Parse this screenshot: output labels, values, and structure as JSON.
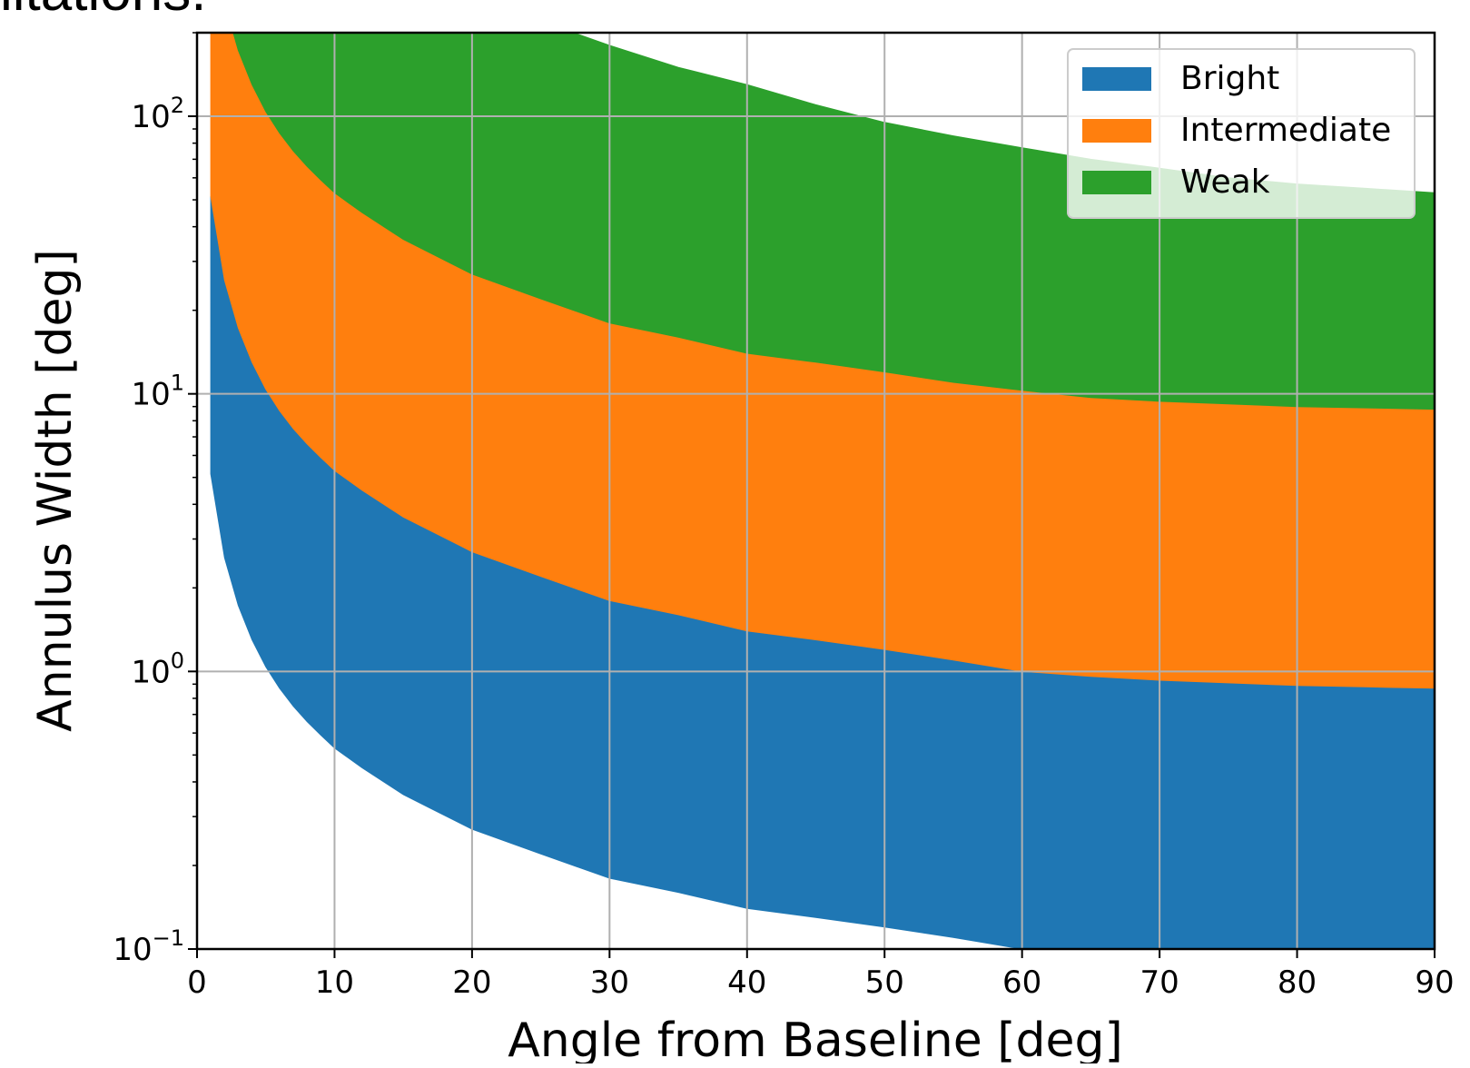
{
  "page": {
    "cropped_caption": "litations."
  },
  "chart_data": {
    "type": "area",
    "xlabel": "Angle from Baseline [deg]",
    "ylabel": "Annulus Width [deg]",
    "xlim": [
      0,
      90
    ],
    "ylim": [
      0.1,
      200
    ],
    "yscale": "log",
    "grid": true,
    "legend_position": "top-right",
    "x_ticks": [
      "0",
      "10",
      "20",
      "30",
      "40",
      "50",
      "60",
      "70",
      "80",
      "90"
    ],
    "y_ticks": [
      {
        "base": "10",
        "exp": "−1"
      },
      {
        "base": "10",
        "exp": "0"
      },
      {
        "base": "10",
        "exp": "1"
      },
      {
        "base": "10",
        "exp": "2"
      }
    ],
    "x": [
      1,
      2,
      3,
      4,
      5,
      6,
      7,
      8,
      9,
      10,
      12,
      15,
      20,
      25,
      30,
      35,
      40,
      45,
      50,
      55,
      60,
      65,
      70,
      75,
      80,
      85,
      90
    ],
    "series": [
      {
        "name": "Bright",
        "color": "#1f77b4",
        "lower": [
          5.15,
          2.57,
          1.73,
          1.3,
          1.04,
          0.87,
          0.75,
          0.66,
          0.59,
          0.53,
          0.45,
          0.36,
          0.27,
          0.22,
          0.18,
          0.16,
          0.14,
          0.13,
          0.12,
          0.11,
          0.1,
          0.095,
          0.092,
          0.09,
          0.089,
          0.088,
          0.087
        ],
        "upper": [
          51.5,
          25.7,
          17.3,
          13.0,
          10.4,
          8.7,
          7.5,
          6.6,
          5.9,
          5.3,
          4.5,
          3.6,
          2.7,
          2.2,
          1.8,
          1.6,
          1.4,
          1.3,
          1.2,
          1.1,
          1.0,
          0.96,
          0.93,
          0.91,
          0.89,
          0.88,
          0.87
        ]
      },
      {
        "name": "Intermediate",
        "color": "#ff7f0e",
        "lower": [
          51.5,
          25.7,
          17.3,
          13.0,
          10.4,
          8.7,
          7.5,
          6.6,
          5.9,
          5.3,
          4.5,
          3.6,
          2.7,
          2.2,
          1.8,
          1.6,
          1.4,
          1.3,
          1.2,
          1.1,
          1.0,
          0.96,
          0.93,
          0.91,
          0.89,
          0.88,
          0.87
        ],
        "upper": [
          300,
          257,
          173,
          130,
          104,
          87,
          75,
          66,
          59,
          53,
          45,
          36,
          27,
          22,
          18,
          16,
          14,
          13,
          12,
          11,
          10.3,
          9.7,
          9.4,
          9.2,
          9.0,
          8.9,
          8.8
        ]
      },
      {
        "name": "Weak",
        "color": "#2ca02c",
        "lower": [
          300,
          257,
          173,
          130,
          104,
          87,
          75,
          66,
          59,
          53,
          45,
          36,
          27,
          22,
          18,
          16,
          14,
          13,
          12,
          11,
          10.3,
          9.7,
          9.4,
          9.2,
          9.0,
          8.9,
          8.8
        ],
        "upper": [
          300,
          300,
          300,
          300,
          300,
          300,
          300,
          300,
          300,
          300,
          300,
          300,
          300,
          220,
          180,
          150,
          130,
          110,
          95,
          85,
          77,
          70,
          65,
          60,
          57,
          55,
          53
        ]
      }
    ]
  }
}
